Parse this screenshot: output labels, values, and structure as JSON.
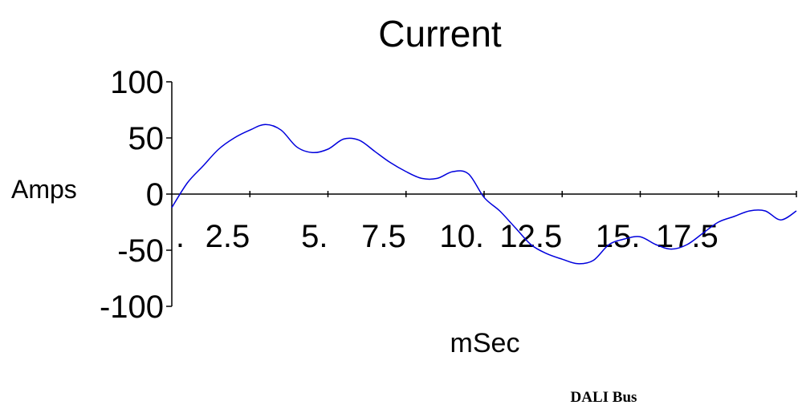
{
  "chart_data": {
    "type": "line",
    "title": "Current",
    "xlabel": "mSec",
    "ylabel": "Amps",
    "caption": "DALI Bus",
    "ylim": [
      -100,
      100
    ],
    "xlim": [
      0,
      20
    ],
    "y_ticks": [
      100,
      50,
      0,
      -50,
      -100
    ],
    "y_tick_labels": [
      "100",
      "50",
      "0",
      "-50",
      "-100"
    ],
    "x_ticks": [
      2.5,
      5,
      7.5,
      10,
      12.5,
      15,
      17.5
    ],
    "x_tick_labels": [
      "2.5",
      "5.",
      "7.5",
      "10.",
      "12.5",
      "15.",
      "17.5"
    ],
    "x_origin_label": ".",
    "grid": false,
    "legend": "none",
    "series_color": "#0000dd",
    "series": [
      {
        "x": [
          0,
          0.5,
          1,
          1.5,
          2,
          2.5,
          3,
          3.5,
          4,
          4.5,
          5,
          5.5,
          6,
          6.5,
          7,
          7.5,
          8,
          8.5,
          9,
          9.5,
          10,
          10.5,
          11,
          11.5,
          12,
          12.5,
          13,
          13.5,
          14,
          14.5,
          15,
          15.5,
          16,
          16.5,
          17,
          17.5,
          18,
          18.5,
          19,
          19.5,
          20
        ],
        "y": [
          -12,
          10,
          25,
          40,
          50,
          57,
          62,
          57,
          42,
          37,
          40,
          49,
          48,
          38,
          28,
          20,
          14,
          14,
          20,
          18,
          -3,
          -15,
          -30,
          -45,
          -53,
          -58,
          -62,
          -59,
          -45,
          -40,
          -38,
          -45,
          -49,
          -45,
          -35,
          -25,
          -20,
          -15,
          -15,
          -23,
          -15
        ]
      }
    ]
  }
}
